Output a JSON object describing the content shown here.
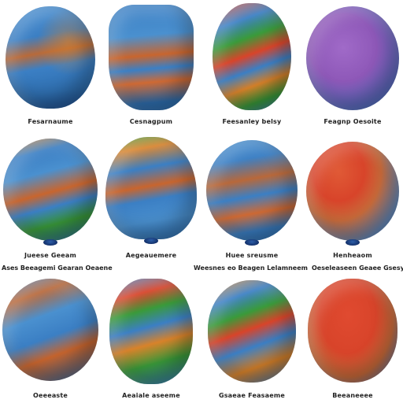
{
  "colors": {
    "blue": "#3b7fc4",
    "red": "#d8442a",
    "orange": "#d8822a",
    "green": "#3a9a3a",
    "purple": "#8e58b8"
  },
  "rows": [
    {
      "items": [
        {
          "label": "Fesarnaume"
        },
        {
          "label": "Cesnagpum"
        },
        {
          "label": "Feesanley belsy"
        },
        {
          "label": "Feagnp Oesoite"
        }
      ]
    },
    {
      "items": [
        {
          "label": "Jueese Geeam"
        },
        {
          "label": "Aegeauemere"
        },
        {
          "label": "Huee sreusme"
        },
        {
          "label": "Henheaom"
        }
      ],
      "sublines": [
        "Ases Beeagemi Gearan Oeaene",
        "Weesnes eo Beagen Lelamneem",
        "Oeseleaseen Geaee Gsesy"
      ]
    },
    {
      "items": [
        {
          "label": "Oeeeaste"
        },
        {
          "label": "Aeaiale aseeme"
        },
        {
          "label": "Gsaeae Feasaeme"
        },
        {
          "label": "Beeaneeee"
        }
      ]
    }
  ]
}
